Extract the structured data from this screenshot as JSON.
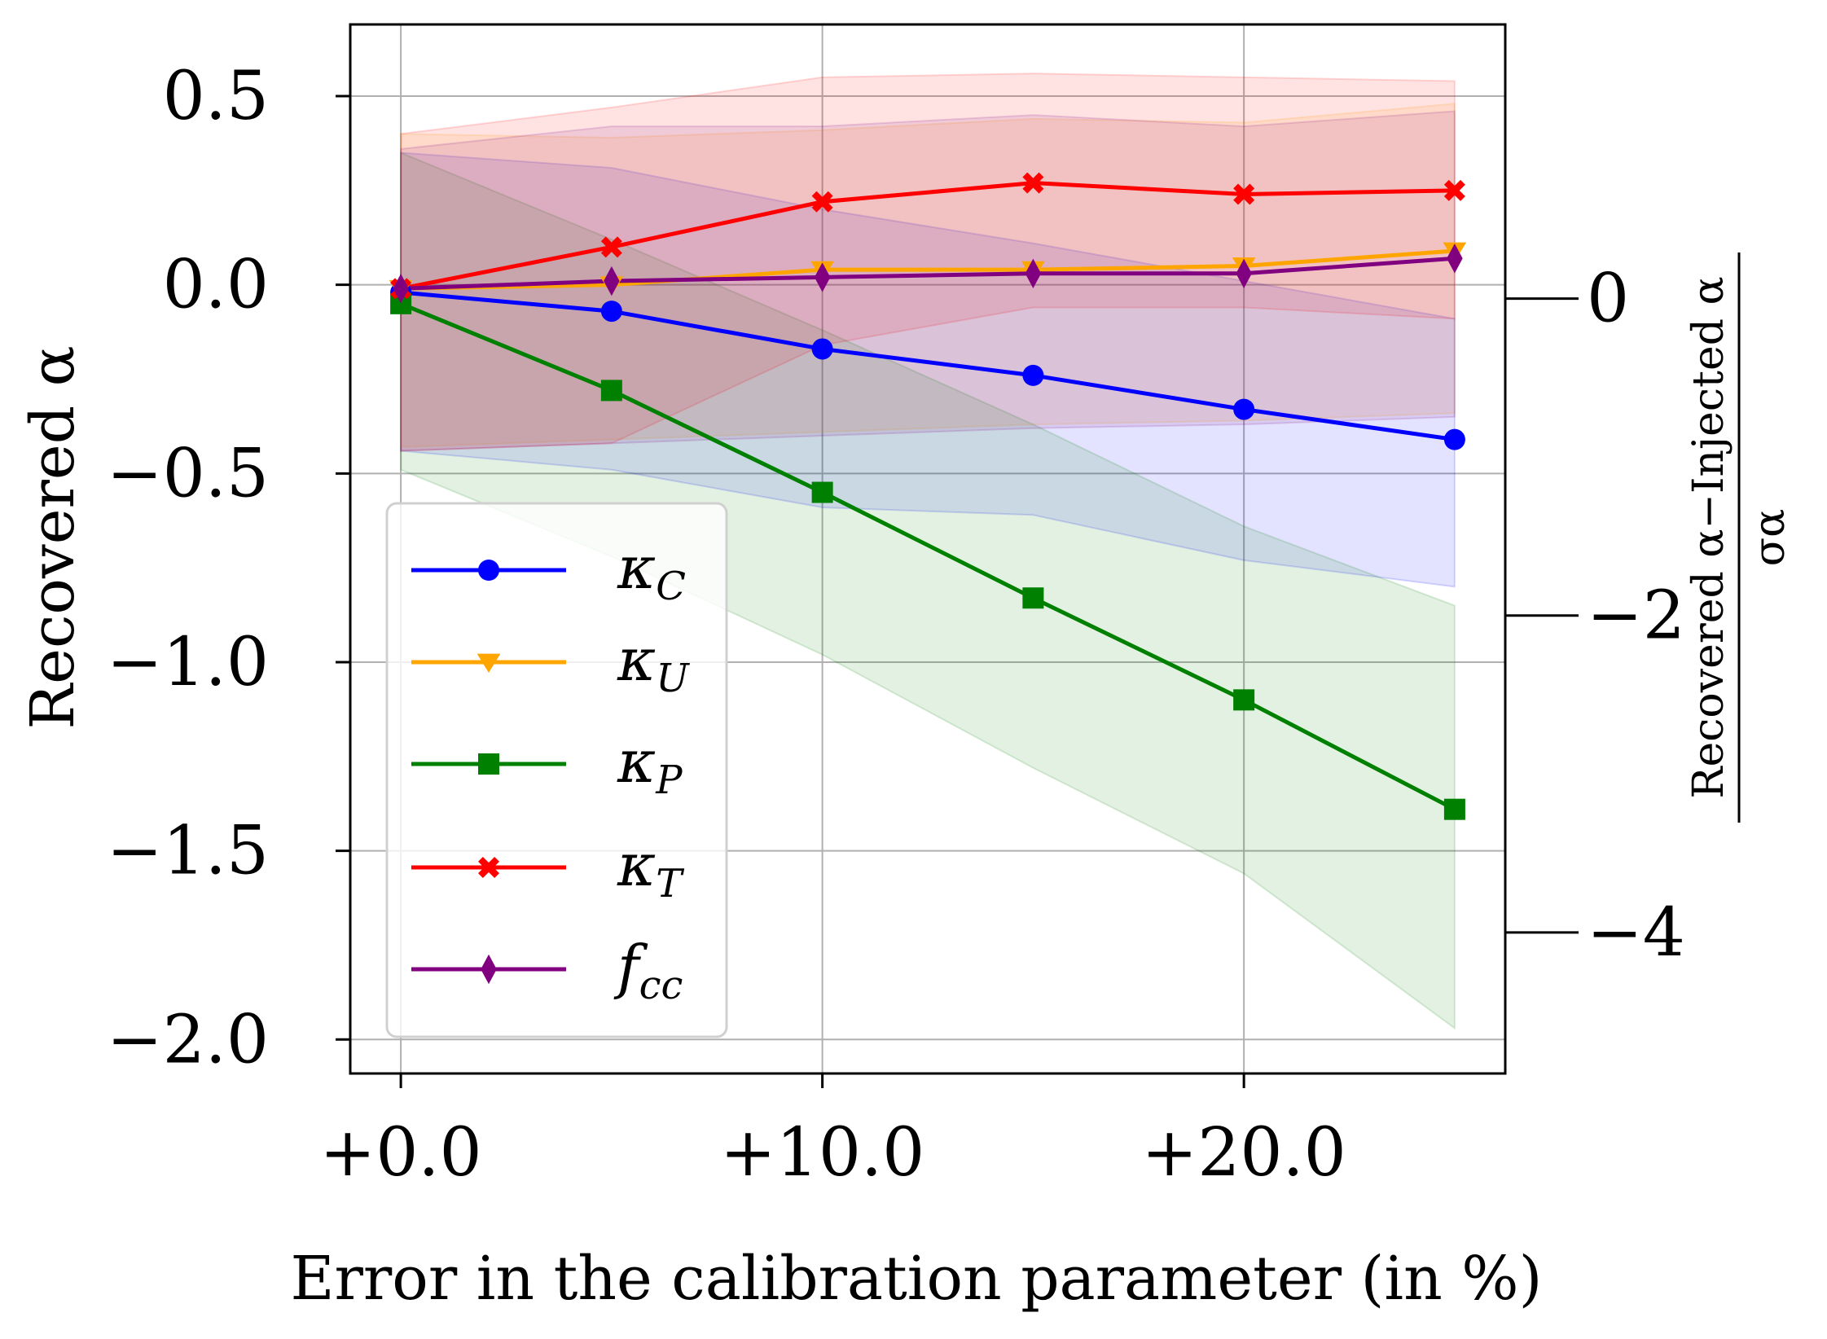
{
  "chart_data": {
    "type": "line",
    "xlabel": "Error in the calibration parameter (in %)",
    "ylabel": "Recovered α",
    "y2label": {
      "numerator": "Recovered α−Injected α",
      "denominator": "σα"
    },
    "x": [
      0,
      5,
      10,
      15,
      20,
      25
    ],
    "xlim": [
      -1.2,
      26.2
    ],
    "ylim": [
      -2.09,
      0.69
    ],
    "y2lim": [
      -4.89,
      1.73
    ],
    "xticks": [
      0,
      10,
      20
    ],
    "xtick_labels": [
      "+0.0",
      "+10.0",
      "+20.0"
    ],
    "yticks": [
      0.5,
      0.0,
      -0.5,
      -1.0,
      -1.5,
      -2.0
    ],
    "ytick_labels": [
      "0.5",
      "0.0",
      "−0.5",
      "−1.0",
      "−1.5",
      "−2.0"
    ],
    "y2ticks": [
      0,
      -2,
      -4
    ],
    "y2tick_labels": [
      "0",
      "−2",
      "−4"
    ],
    "grid": true,
    "legend_position": "lower-left",
    "series": [
      {
        "name": "κ",
        "sub": "C",
        "color": "#0000ff",
        "marker": "circle",
        "values": [
          -0.02,
          -0.07,
          -0.17,
          -0.24,
          -0.33,
          -0.41
        ],
        "band_lower": [
          -0.44,
          -0.49,
          -0.59,
          -0.61,
          -0.73,
          -0.8
        ],
        "band_upper": [
          0.35,
          0.31,
          0.2,
          0.11,
          0.01,
          -0.09
        ]
      },
      {
        "name": "κ",
        "sub": "U",
        "color": "#ffa500",
        "marker": "triangle-down",
        "values": [
          -0.01,
          0.0,
          0.04,
          0.04,
          0.05,
          0.09
        ],
        "band_lower": [
          -0.43,
          -0.41,
          -0.39,
          -0.37,
          -0.36,
          -0.34
        ],
        "band_upper": [
          0.4,
          0.39,
          0.41,
          0.44,
          0.43,
          0.48
        ]
      },
      {
        "name": "κ",
        "sub": "P",
        "color": "#008000",
        "marker": "square",
        "values": [
          -0.05,
          -0.28,
          -0.55,
          -0.83,
          -1.1,
          -1.39
        ],
        "band_lower": [
          -0.49,
          -0.72,
          -0.98,
          -1.28,
          -1.56,
          -1.97
        ],
        "band_upper": [
          0.35,
          0.12,
          -0.12,
          -0.37,
          -0.64,
          -0.85
        ]
      },
      {
        "name": "κ",
        "sub": "T",
        "color": "#ff0000",
        "marker": "x-filled",
        "values": [
          -0.01,
          0.1,
          0.22,
          0.27,
          0.24,
          0.25
        ],
        "band_lower": [
          -0.44,
          -0.42,
          -0.16,
          -0.06,
          -0.06,
          -0.09
        ],
        "band_upper": [
          0.4,
          0.47,
          0.55,
          0.56,
          0.55,
          0.54
        ]
      },
      {
        "name": "f",
        "sub": "cc",
        "color": "#800080",
        "marker": "thin-diamond",
        "values": [
          -0.01,
          0.01,
          0.02,
          0.03,
          0.03,
          0.07
        ],
        "band_lower": [
          -0.44,
          -0.42,
          -0.4,
          -0.38,
          -0.37,
          -0.35
        ],
        "band_upper": [
          0.36,
          0.42,
          0.42,
          0.45,
          0.42,
          0.46
        ]
      }
    ]
  }
}
